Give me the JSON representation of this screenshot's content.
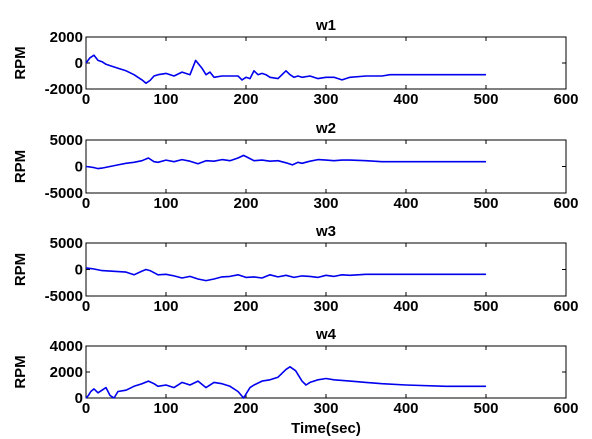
{
  "chart_data": [
    {
      "type": "line",
      "title": "w1",
      "ylabel": "RPM",
      "xlabel": "",
      "xlim": [
        0,
        600
      ],
      "ylim": [
        -2000,
        2000
      ],
      "xticks": [
        0,
        100,
        200,
        300,
        400,
        500,
        600
      ],
      "yticks": [
        2000,
        0,
        -2000
      ],
      "xtick_labels": [
        "0",
        "100",
        "200",
        "300",
        "400",
        "500",
        "600"
      ],
      "ytick_labels": [
        "2000",
        "0",
        "-2000"
      ],
      "series_color": "#0000ee",
      "x": [
        0,
        5,
        10,
        15,
        20,
        25,
        30,
        40,
        50,
        60,
        70,
        75,
        80,
        85,
        90,
        100,
        110,
        120,
        130,
        137,
        145,
        150,
        155,
        160,
        170,
        180,
        190,
        195,
        200,
        205,
        210,
        215,
        220,
        225,
        230,
        240,
        250,
        255,
        260,
        265,
        270,
        280,
        290,
        300,
        310,
        320,
        330,
        350,
        370,
        380,
        400,
        450,
        500
      ],
      "y": [
        0,
        400,
        600,
        200,
        100,
        -100,
        -200,
        -400,
        -600,
        -900,
        -1300,
        -1550,
        -1350,
        -1000,
        -900,
        -800,
        -1000,
        -700,
        -900,
        200,
        -400,
        -900,
        -700,
        -1100,
        -1000,
        -1000,
        -1000,
        -1300,
        -1100,
        -1200,
        -600,
        -900,
        -800,
        -900,
        -1100,
        -1200,
        -600,
        -900,
        -1100,
        -1000,
        -1100,
        -1000,
        -1200,
        -1100,
        -1100,
        -1300,
        -1100,
        -1000,
        -1000,
        -900,
        -900,
        -900,
        -900
      ]
    },
    {
      "type": "line",
      "title": "w2",
      "ylabel": "RPM",
      "xlabel": "",
      "xlim": [
        0,
        600
      ],
      "ylim": [
        -5000,
        5000
      ],
      "xticks": [
        0,
        100,
        200,
        300,
        400,
        500,
        600
      ],
      "yticks": [
        5000,
        0,
        -5000
      ],
      "xtick_labels": [
        "0",
        "100",
        "200",
        "300",
        "400",
        "500",
        "600"
      ],
      "ytick_labels": [
        "5000",
        "0",
        "-5000"
      ],
      "series_color": "#0000ee",
      "x": [
        0,
        5,
        10,
        15,
        20,
        30,
        40,
        50,
        60,
        70,
        78,
        85,
        90,
        100,
        110,
        120,
        130,
        140,
        150,
        160,
        170,
        180,
        190,
        197,
        205,
        210,
        220,
        230,
        240,
        250,
        258,
        265,
        270,
        280,
        290,
        300,
        310,
        320,
        330,
        350,
        370,
        400,
        450,
        500
      ],
      "y": [
        0,
        -100,
        -200,
        -400,
        -300,
        0,
        300,
        600,
        800,
        1100,
        1600,
        900,
        800,
        1200,
        900,
        1300,
        1000,
        500,
        1100,
        1000,
        1300,
        1100,
        1600,
        2100,
        1500,
        1100,
        1200,
        1000,
        1100,
        700,
        300,
        800,
        600,
        1000,
        1300,
        1200,
        1100,
        1200,
        1200,
        1100,
        900,
        900,
        900,
        900
      ]
    },
    {
      "type": "line",
      "title": "w3",
      "ylabel": "RPM",
      "xlabel": "",
      "xlim": [
        0,
        600
      ],
      "ylim": [
        -5000,
        5000
      ],
      "xticks": [
        0,
        100,
        200,
        300,
        400,
        500,
        600
      ],
      "yticks": [
        5000,
        0,
        -5000
      ],
      "xtick_labels": [
        "0",
        "100",
        "200",
        "300",
        "400",
        "500",
        "600"
      ],
      "ytick_labels": [
        "5000",
        "0",
        "-5000"
      ],
      "series_color": "#0000ee",
      "x": [
        0,
        5,
        10,
        20,
        30,
        40,
        50,
        60,
        70,
        75,
        80,
        90,
        100,
        110,
        120,
        130,
        140,
        150,
        160,
        170,
        180,
        190,
        200,
        210,
        220,
        230,
        240,
        250,
        260,
        270,
        280,
        290,
        300,
        310,
        320,
        330,
        350,
        370,
        400,
        450,
        500
      ],
      "y": [
        300,
        200,
        100,
        -200,
        -300,
        -400,
        -500,
        -1000,
        -300,
        0,
        -200,
        -1000,
        -900,
        -1200,
        -1600,
        -1300,
        -1800,
        -2100,
        -1800,
        -1400,
        -1300,
        -1000,
        -1500,
        -1400,
        -1600,
        -1000,
        -1400,
        -1100,
        -1500,
        -1200,
        -1300,
        -1500,
        -1100,
        -1300,
        -1000,
        -1100,
        -900,
        -900,
        -900,
        -900,
        -900
      ]
    },
    {
      "type": "line",
      "title": "w4",
      "ylabel": "RPM",
      "xlabel": "Time(sec)",
      "xlim": [
        0,
        600
      ],
      "ylim": [
        0,
        4000
      ],
      "xticks": [
        0,
        100,
        200,
        300,
        400,
        500,
        600
      ],
      "yticks": [
        4000,
        2000,
        0
      ],
      "xtick_labels": [
        "0",
        "100",
        "200",
        "300",
        "400",
        "500",
        "600"
      ],
      "ytick_labels": [
        "4000",
        "2000",
        "0"
      ],
      "series_color": "#0000ee",
      "x": [
        0,
        3,
        6,
        10,
        15,
        20,
        25,
        30,
        35,
        40,
        50,
        60,
        70,
        78,
        85,
        90,
        100,
        110,
        120,
        130,
        140,
        150,
        160,
        170,
        180,
        190,
        197,
        205,
        210,
        220,
        230,
        240,
        250,
        255,
        262,
        270,
        275,
        280,
        290,
        300,
        310,
        330,
        350,
        370,
        400,
        450,
        500
      ],
      "y": [
        0,
        200,
        500,
        700,
        400,
        600,
        800,
        200,
        0,
        500,
        600,
        900,
        1100,
        1300,
        1100,
        900,
        1000,
        800,
        1200,
        1000,
        1300,
        800,
        1200,
        1100,
        900,
        500,
        0,
        800,
        1000,
        1300,
        1400,
        1600,
        2200,
        2400,
        2100,
        1300,
        1000,
        1200,
        1400,
        1500,
        1400,
        1300,
        1200,
        1100,
        1000,
        900,
        900
      ]
    }
  ]
}
